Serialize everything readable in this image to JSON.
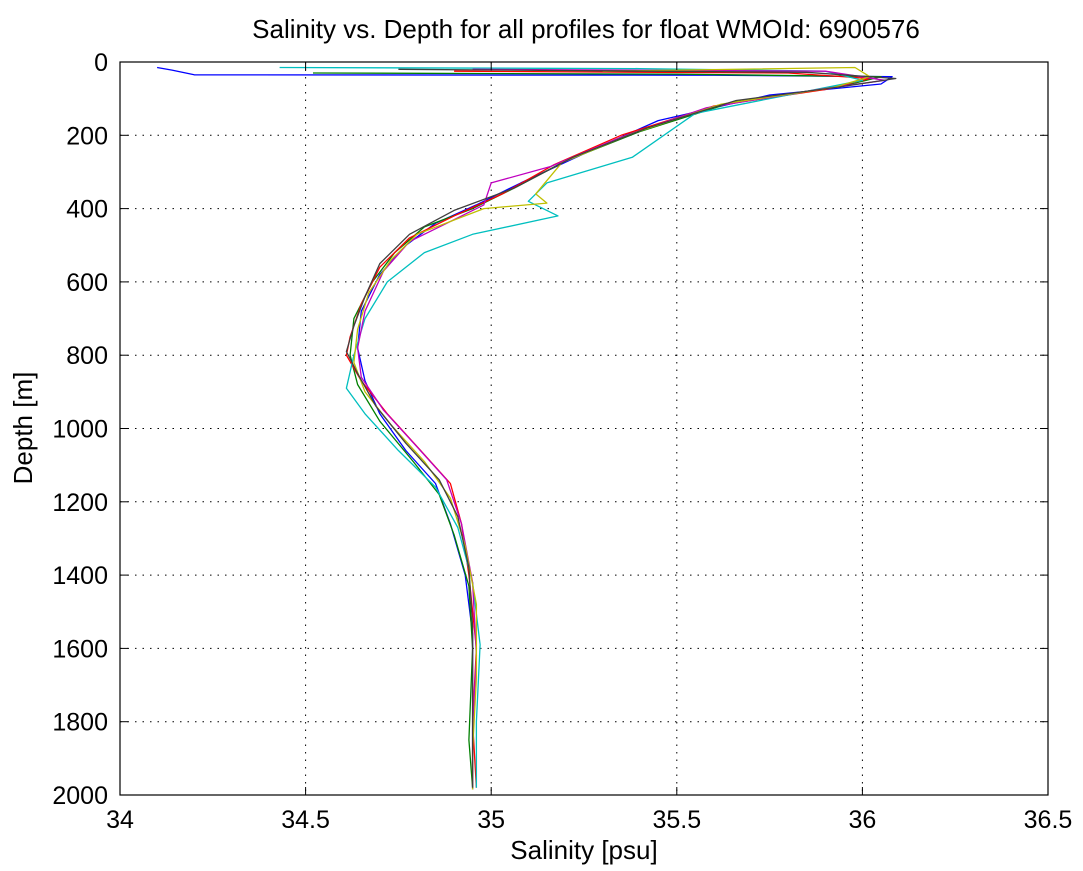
{
  "chart_data": {
    "type": "line",
    "title": "Salinity vs. Depth for all profiles for float WMOId: 6900576",
    "xlabel": "Salinity [psu]",
    "ylabel": "Depth [m]",
    "xlim": [
      34,
      36.5
    ],
    "ylim": [
      0,
      2000
    ],
    "y_axis_inverted": true,
    "grid": true,
    "grid_style": "dotted",
    "x_ticks": [
      "34",
      "34.5",
      "35",
      "35.5",
      "36",
      "36.5"
    ],
    "y_ticks": [
      "0",
      "200",
      "400",
      "600",
      "800",
      "1000",
      "1200",
      "1400",
      "1600",
      "1800",
      "2000"
    ],
    "series_colors": [
      "#0000ff",
      "#008000",
      "#ff0000",
      "#00bfbf",
      "#bf00bf",
      "#bfbf00",
      "#404040"
    ],
    "series": [
      {
        "color": "#0000ff",
        "points": [
          [
            34.1,
            15
          ],
          [
            34.14,
            22
          ],
          [
            34.2,
            35
          ],
          [
            35.6,
            36
          ],
          [
            36.08,
            40
          ],
          [
            36.05,
            60
          ],
          [
            35.75,
            90
          ],
          [
            35.45,
            160
          ],
          [
            35.25,
            250
          ],
          [
            35.08,
            330
          ],
          [
            34.96,
            390
          ],
          [
            34.85,
            440
          ],
          [
            34.77,
            500
          ],
          [
            34.7,
            580
          ],
          [
            34.65,
            680
          ],
          [
            34.64,
            780
          ],
          [
            34.66,
            870
          ],
          [
            34.7,
            960
          ],
          [
            34.77,
            1060
          ],
          [
            34.85,
            1150
          ],
          [
            34.89,
            1260
          ],
          [
            34.93,
            1400
          ],
          [
            34.95,
            1560
          ],
          [
            34.95,
            1750
          ],
          [
            34.95,
            1985
          ]
        ]
      },
      {
        "color": "#008000",
        "points": [
          [
            34.52,
            30
          ],
          [
            35.5,
            33
          ],
          [
            36.05,
            40
          ],
          [
            35.95,
            65
          ],
          [
            35.65,
            110
          ],
          [
            35.4,
            190
          ],
          [
            35.2,
            270
          ],
          [
            35.07,
            340
          ],
          [
            34.95,
            400
          ],
          [
            34.82,
            450
          ],
          [
            34.74,
            520
          ],
          [
            34.68,
            600
          ],
          [
            34.63,
            700
          ],
          [
            34.62,
            800
          ],
          [
            34.64,
            880
          ],
          [
            34.7,
            980
          ],
          [
            34.79,
            1090
          ],
          [
            34.86,
            1180
          ],
          [
            34.9,
            1290
          ],
          [
            34.94,
            1430
          ],
          [
            34.95,
            1600
          ],
          [
            34.94,
            1850
          ],
          [
            34.95,
            1980
          ]
        ]
      },
      {
        "color": "#ff0000",
        "points": [
          [
            34.9,
            25
          ],
          [
            35.8,
            30
          ],
          [
            36.02,
            45
          ],
          [
            35.9,
            75
          ],
          [
            35.6,
            120
          ],
          [
            35.35,
            200
          ],
          [
            35.17,
            280
          ],
          [
            35.03,
            360
          ],
          [
            34.9,
            420
          ],
          [
            34.78,
            480
          ],
          [
            34.7,
            560
          ],
          [
            34.65,
            660
          ],
          [
            34.62,
            750
          ],
          [
            34.61,
            800
          ],
          [
            34.65,
            870
          ],
          [
            34.72,
            960
          ],
          [
            34.81,
            1060
          ],
          [
            34.89,
            1150
          ],
          [
            34.92,
            1260
          ],
          [
            34.94,
            1400
          ],
          [
            34.96,
            1600
          ],
          [
            34.95,
            1800
          ],
          [
            34.96,
            1980
          ]
        ]
      },
      {
        "color": "#00bfbf",
        "points": [
          [
            34.43,
            15
          ],
          [
            35.4,
            18
          ],
          [
            35.9,
            25
          ],
          [
            36.0,
            50
          ],
          [
            35.85,
            80
          ],
          [
            35.55,
            140
          ],
          [
            35.38,
            260
          ],
          [
            35.15,
            330
          ],
          [
            35.1,
            380
          ],
          [
            35.18,
            420
          ],
          [
            34.95,
            470
          ],
          [
            34.82,
            520
          ],
          [
            34.72,
            600
          ],
          [
            34.66,
            700
          ],
          [
            34.63,
            800
          ],
          [
            34.61,
            890
          ],
          [
            34.66,
            960
          ],
          [
            34.75,
            1060
          ],
          [
            34.85,
            1160
          ],
          [
            34.91,
            1270
          ],
          [
            34.95,
            1420
          ],
          [
            34.97,
            1590
          ],
          [
            34.96,
            1800
          ],
          [
            34.96,
            1980
          ]
        ]
      },
      {
        "color": "#bf00bf",
        "points": [
          [
            34.95,
            20
          ],
          [
            35.9,
            25
          ],
          [
            36.06,
            50
          ],
          [
            35.88,
            75
          ],
          [
            35.58,
            125
          ],
          [
            35.35,
            205
          ],
          [
            35.16,
            285
          ],
          [
            35.0,
            330
          ],
          [
            34.98,
            390
          ],
          [
            34.88,
            440
          ],
          [
            34.78,
            490
          ],
          [
            34.71,
            570
          ],
          [
            34.66,
            680
          ],
          [
            34.64,
            780
          ],
          [
            34.65,
            860
          ],
          [
            34.71,
            950
          ],
          [
            34.8,
            1050
          ],
          [
            34.88,
            1140
          ],
          [
            34.92,
            1260
          ],
          [
            34.95,
            1420
          ],
          [
            34.96,
            1620
          ],
          [
            34.95,
            1820
          ],
          [
            34.95,
            1975
          ]
        ]
      },
      {
        "color": "#bfbf00",
        "points": [
          [
            35.3,
            25
          ],
          [
            35.98,
            15
          ],
          [
            36.02,
            40
          ],
          [
            35.92,
            70
          ],
          [
            35.62,
            115
          ],
          [
            35.38,
            195
          ],
          [
            35.19,
            275
          ],
          [
            35.12,
            360
          ],
          [
            35.15,
            385
          ],
          [
            34.98,
            400
          ],
          [
            34.8,
            470
          ],
          [
            34.73,
            540
          ],
          [
            34.67,
            630
          ],
          [
            34.64,
            730
          ],
          [
            34.63,
            820
          ],
          [
            34.66,
            900
          ],
          [
            34.73,
            990
          ],
          [
            34.82,
            1090
          ],
          [
            34.89,
            1190
          ],
          [
            34.93,
            1320
          ],
          [
            34.96,
            1480
          ],
          [
            34.96,
            1680
          ],
          [
            34.95,
            1880
          ],
          [
            34.95,
            1985
          ]
        ]
      },
      {
        "color": "#404040",
        "points": [
          [
            34.75,
            20
          ],
          [
            35.85,
            28
          ],
          [
            36.09,
            45
          ],
          [
            35.94,
            68
          ],
          [
            35.66,
            105
          ],
          [
            35.42,
            180
          ],
          [
            35.22,
            260
          ],
          [
            35.06,
            345
          ],
          [
            34.9,
            405
          ],
          [
            34.78,
            470
          ],
          [
            34.7,
            550
          ],
          [
            34.66,
            640
          ],
          [
            34.63,
            720
          ],
          [
            34.61,
            790
          ],
          [
            34.64,
            850
          ],
          [
            34.69,
            940
          ],
          [
            34.77,
            1040
          ],
          [
            34.86,
            1140
          ],
          [
            34.91,
            1240
          ],
          [
            34.94,
            1380
          ],
          [
            34.95,
            1540
          ],
          [
            34.95,
            1760
          ],
          [
            34.95,
            1980
          ]
        ]
      }
    ]
  }
}
